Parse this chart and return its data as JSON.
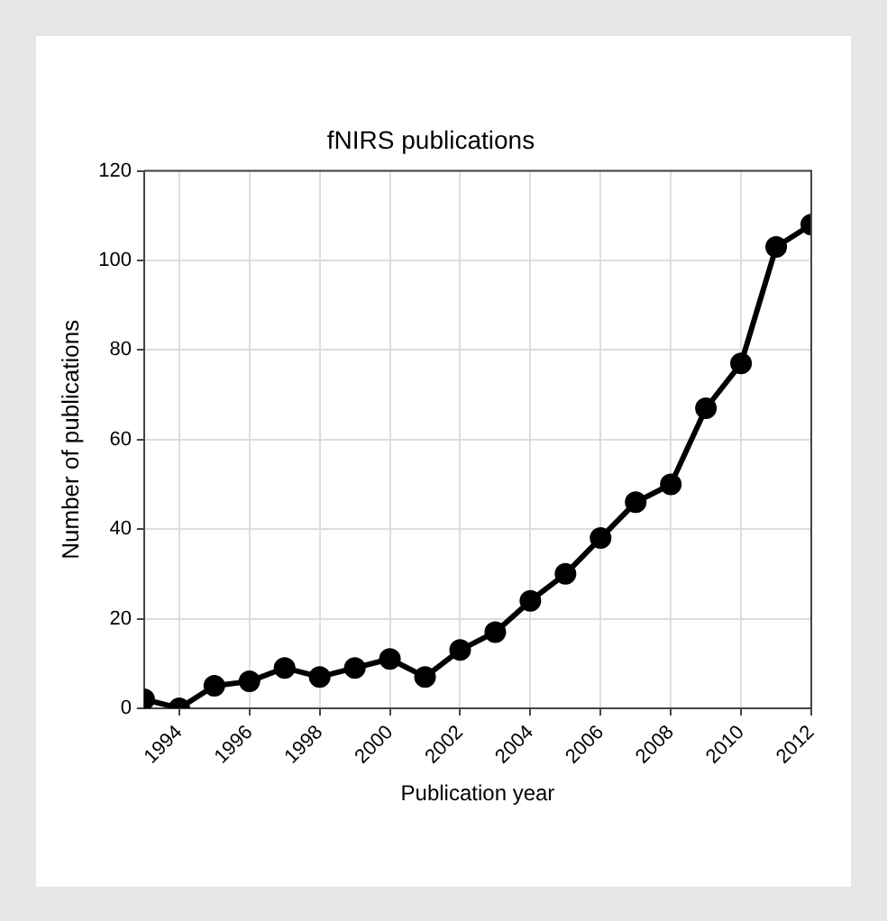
{
  "chart_data": {
    "type": "line",
    "title": "fNIRS publications",
    "xlabel": "Publication year",
    "ylabel": "Number of publications",
    "x": [
      1993,
      1994,
      1995,
      1996,
      1997,
      1998,
      1999,
      2000,
      2001,
      2002,
      2003,
      2004,
      2005,
      2006,
      2007,
      2008,
      2009,
      2010,
      2011,
      2012
    ],
    "series": [
      {
        "color": "#000000",
        "values": [
          2,
          0,
          5,
          6,
          9,
          7,
          9,
          11,
          7,
          13,
          17,
          24,
          30,
          38,
          46,
          50,
          67,
          77,
          103,
          108
        ]
      }
    ],
    "xlim": [
      1993,
      2012
    ],
    "xticks": [
      1994,
      1996,
      1998,
      2000,
      2002,
      2004,
      2006,
      2008,
      2010,
      2012
    ],
    "ylim": [
      0,
      120
    ],
    "yticks": [
      0,
      20,
      40,
      60,
      80,
      100,
      120
    ],
    "grid": true,
    "marker": "circle",
    "line_style": "solid",
    "legend": false
  }
}
